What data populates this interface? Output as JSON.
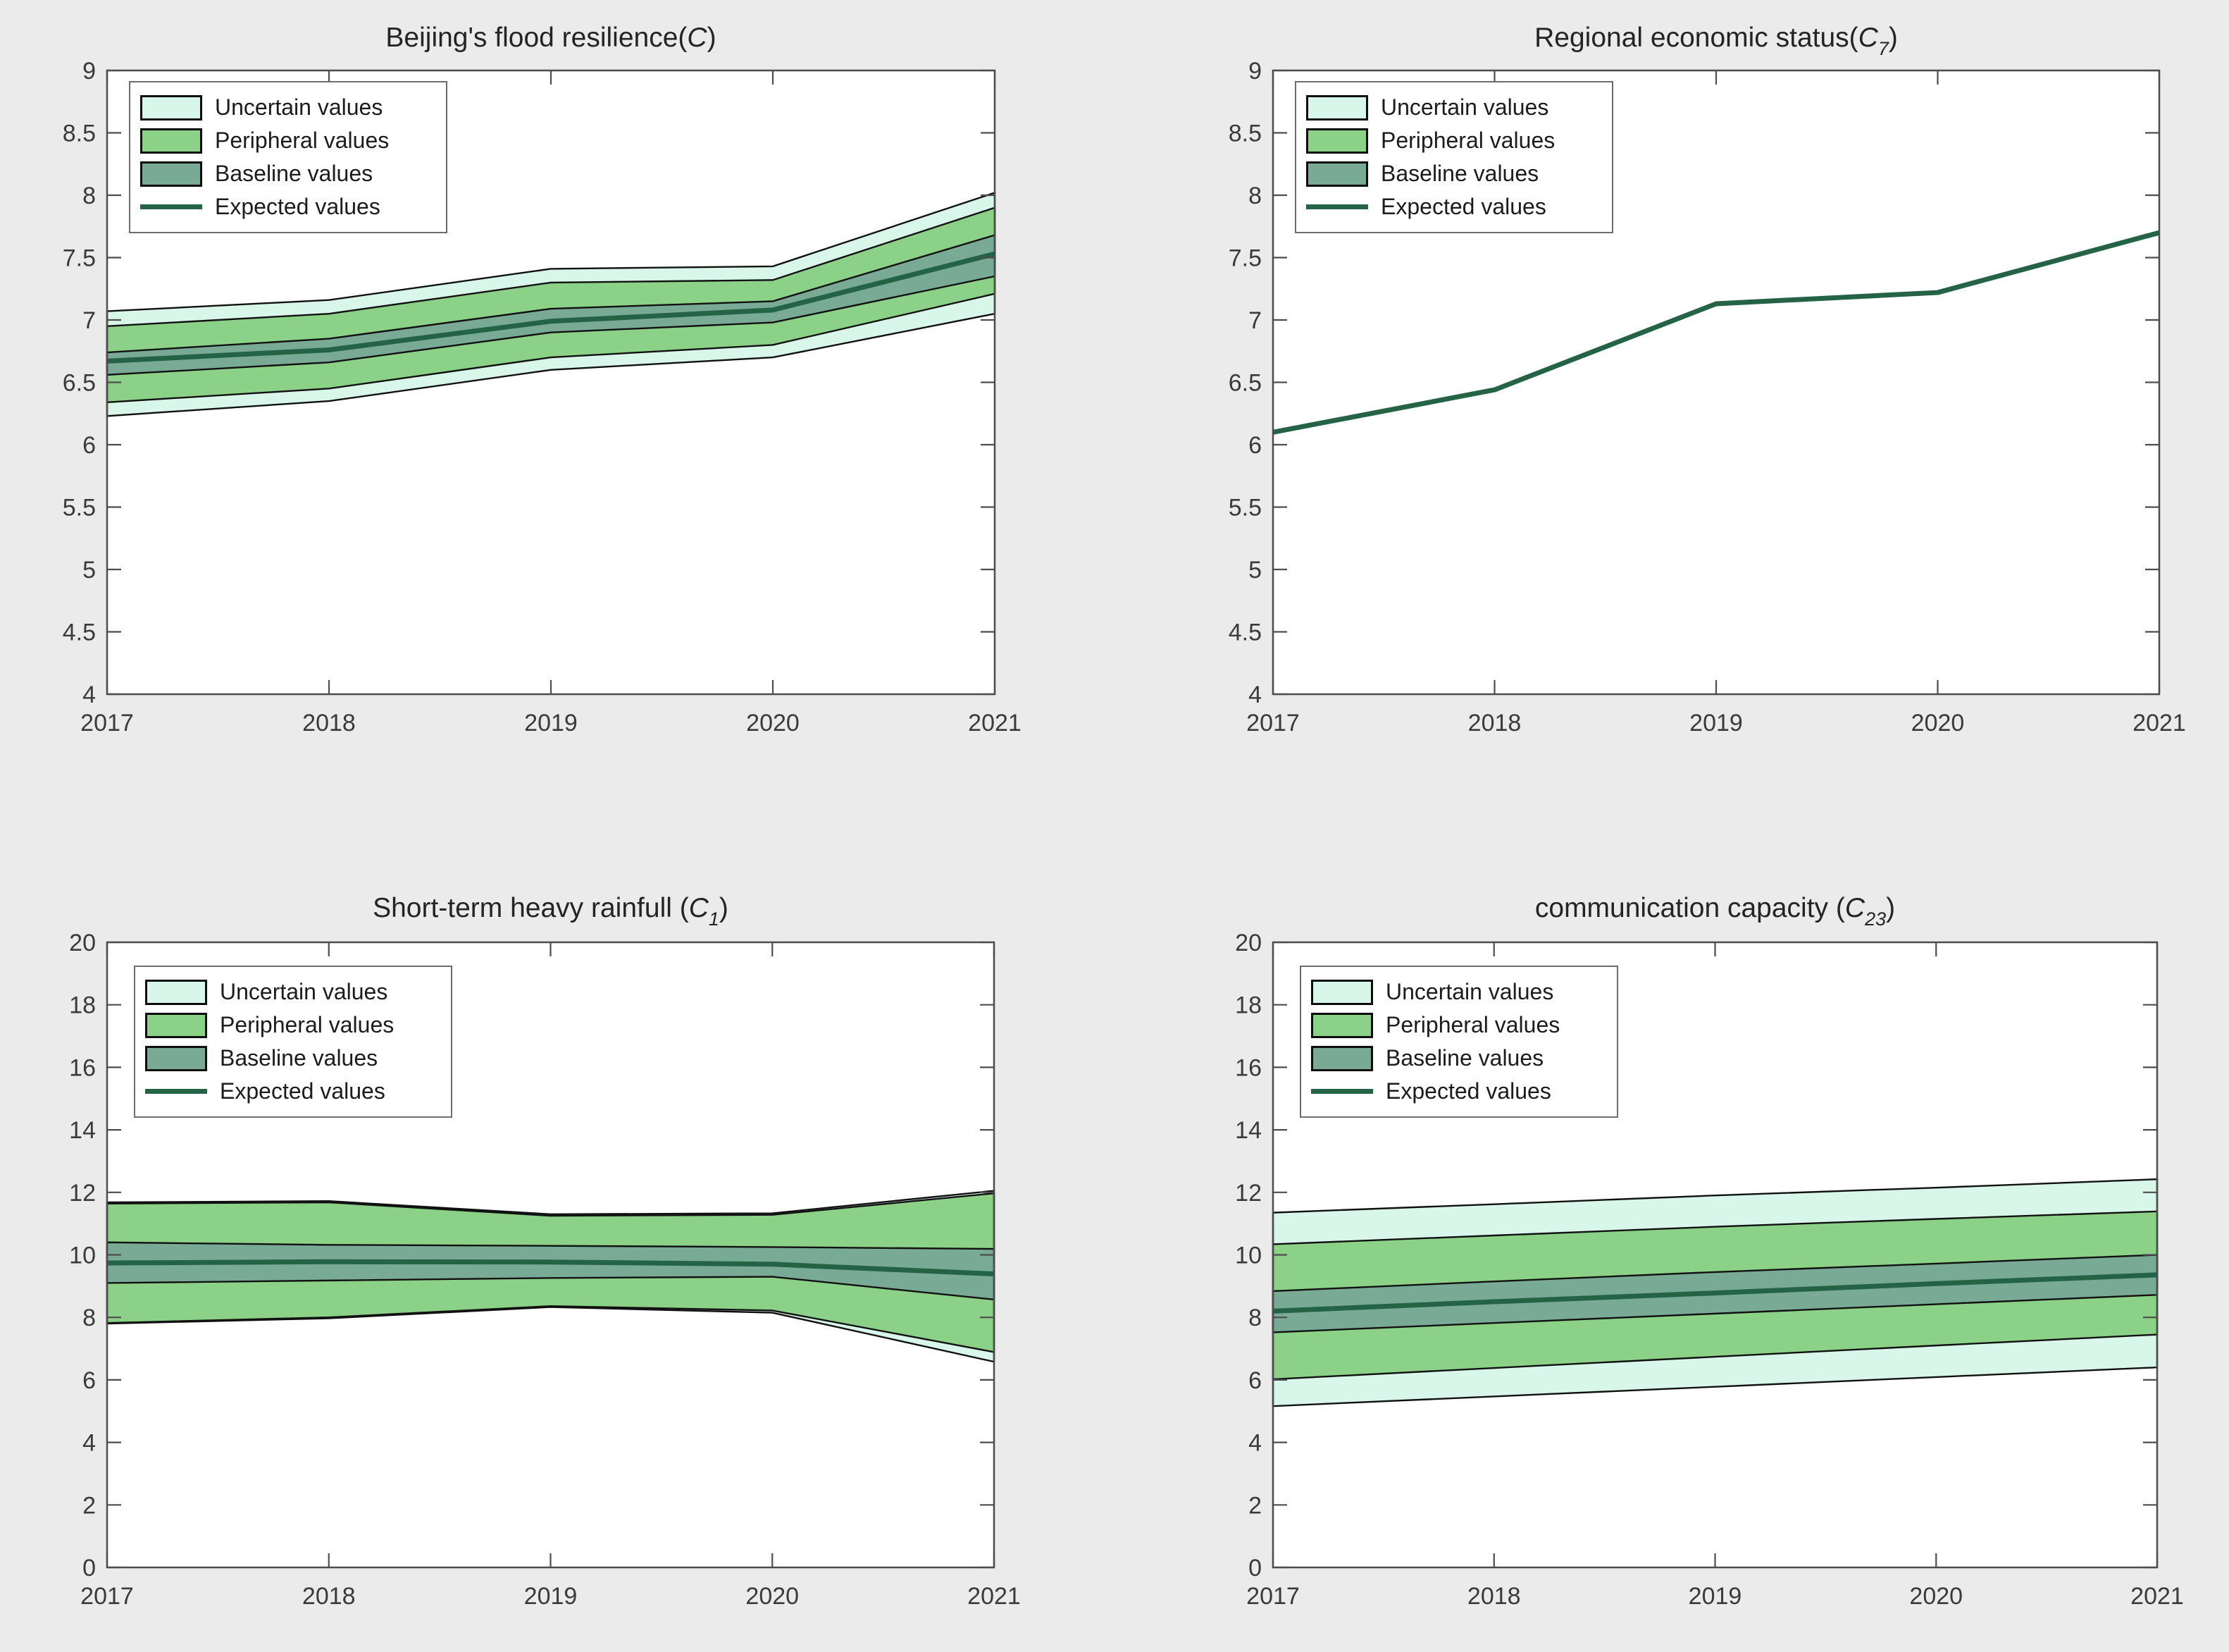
{
  "page": {
    "background": "#ebebeb",
    "plot_background": "#ffffff"
  },
  "colors": {
    "uncertain": "#d8f6e9",
    "peripheral": "#8cd188",
    "baseline": "#78aa96",
    "expected": "#256347",
    "band_outline": "#111111",
    "axis": "#4d4d4d",
    "tick_label": "#3a3a3a"
  },
  "legend": {
    "items": [
      "Uncertain values",
      "Peripheral values",
      "Baseline values",
      "Expected values"
    ]
  },
  "chart_data": [
    {
      "type": "area",
      "title": {
        "prefix": "Beijing's flood resilience(",
        "var": "C",
        "sub": "",
        "suffix": ")"
      },
      "x": [
        2017,
        2018,
        2019,
        2020,
        2021
      ],
      "ylim": [
        4,
        9
      ],
      "ytick_step": 0.5,
      "grid": false,
      "legend_position": "top-left",
      "series": [
        {
          "name": "Uncertain values",
          "low": [
            6.23,
            6.35,
            6.6,
            6.7,
            7.05
          ],
          "high": [
            7.07,
            7.16,
            7.41,
            7.43,
            8.02
          ]
        },
        {
          "name": "Peripheral values",
          "low": [
            6.34,
            6.45,
            6.7,
            6.8,
            7.21
          ],
          "high": [
            6.95,
            7.05,
            7.3,
            7.32,
            7.9
          ]
        },
        {
          "name": "Baseline values",
          "low": [
            6.56,
            6.66,
            6.9,
            6.98,
            7.35
          ],
          "high": [
            6.74,
            6.85,
            7.09,
            7.15,
            7.68
          ]
        },
        {
          "name": "Expected values",
          "values": [
            6.67,
            6.76,
            6.99,
            7.08,
            7.53
          ]
        }
      ]
    },
    {
      "type": "line",
      "title": {
        "prefix": "Regional economic status(",
        "var": "C",
        "sub": "7",
        "suffix": ")"
      },
      "x": [
        2017,
        2018,
        2019,
        2020,
        2021
      ],
      "ylim": [
        4,
        9
      ],
      "ytick_step": 0.5,
      "grid": false,
      "legend_position": "top-left",
      "series": [
        {
          "name": "Expected values",
          "values": [
            6.1,
            6.44,
            7.13,
            7.22,
            7.7
          ]
        }
      ]
    },
    {
      "type": "area",
      "title": {
        "prefix": "Short-term heavy rainfull (",
        "var": "C",
        "sub": "1",
        "suffix": ")"
      },
      "x": [
        2017,
        2018,
        2019,
        2020,
        2021
      ],
      "ylim": [
        0,
        20
      ],
      "ytick_step": 2,
      "grid": false,
      "legend_position": "top-left",
      "series": [
        {
          "name": "Uncertain values",
          "low": [
            7.8,
            7.97,
            8.33,
            8.15,
            6.58
          ],
          "high": [
            11.68,
            11.72,
            11.3,
            11.33,
            12.05
          ]
        },
        {
          "name": "Peripheral values",
          "low": [
            7.82,
            8.0,
            8.36,
            8.22,
            6.89
          ],
          "high": [
            11.64,
            11.68,
            11.25,
            11.28,
            11.97
          ]
        },
        {
          "name": "Baseline values",
          "low": [
            9.1,
            9.18,
            9.26,
            9.3,
            8.57
          ],
          "high": [
            10.4,
            10.32,
            10.29,
            10.25,
            10.19
          ]
        },
        {
          "name": "Expected values",
          "values": [
            9.74,
            9.78,
            9.77,
            9.7,
            9.39
          ]
        }
      ]
    },
    {
      "type": "area",
      "title": {
        "prefix": "communication capacity (",
        "var": "C",
        "sub": "23",
        "suffix": ")"
      },
      "x": [
        2017,
        2018,
        2019,
        2020,
        2021
      ],
      "ylim": [
        0,
        20
      ],
      "ytick_step": 2,
      "grid": false,
      "legend_position": "top-left",
      "series": [
        {
          "name": "Uncertain values",
          "low": [
            5.16,
            5.47,
            5.78,
            6.09,
            6.4
          ],
          "high": [
            11.35,
            11.62,
            11.9,
            12.15,
            12.42
          ]
        },
        {
          "name": "Peripheral values",
          "low": [
            6.02,
            6.38,
            6.74,
            7.1,
            7.45
          ],
          "high": [
            10.34,
            10.62,
            10.9,
            11.15,
            11.39
          ]
        },
        {
          "name": "Baseline values",
          "low": [
            7.52,
            7.82,
            8.12,
            8.42,
            8.72
          ],
          "high": [
            8.84,
            9.15,
            9.45,
            9.72,
            10.0
          ]
        },
        {
          "name": "Expected values",
          "values": [
            8.2,
            8.5,
            8.78,
            9.08,
            9.36
          ]
        }
      ]
    }
  ]
}
